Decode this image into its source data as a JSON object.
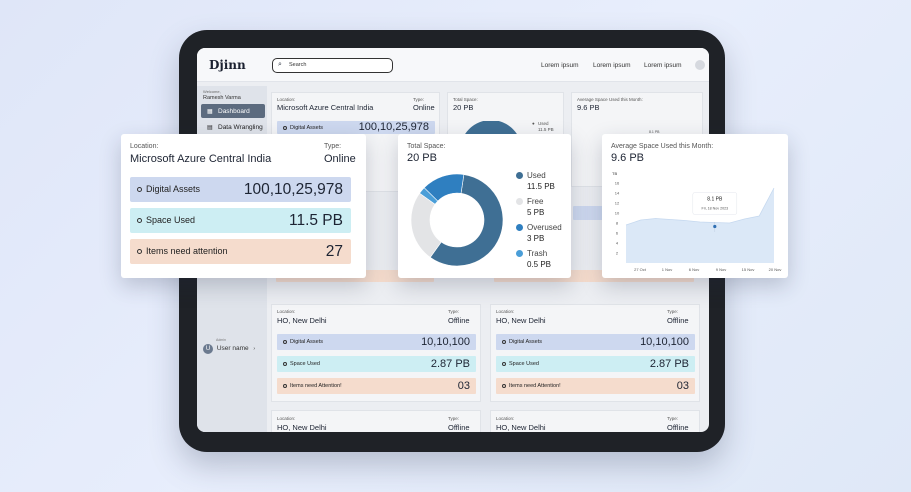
{
  "app": {
    "logo": "Djinn",
    "search_placeholder": "Search",
    "nav": [
      "Lorem ipsum",
      "Lorem ipsum",
      "Lorem ipsum"
    ]
  },
  "sidebar": {
    "welcome": "Welcome,",
    "user": "Ramesh Varma",
    "items": [
      {
        "label": "Dashboard",
        "icon": "grid-icon",
        "active": true
      },
      {
        "label": "Data Wrangling",
        "icon": "database-icon",
        "active": false
      }
    ],
    "footer_user": "User name",
    "footer_user_caption": "Admin"
  },
  "location_card_popup": {
    "location_label": "Location:",
    "location": "Microsoft Azure Central India",
    "type_label": "Type:",
    "type": "Online",
    "rows": [
      {
        "label": "Digital Assets",
        "value": "100,10,25,978"
      },
      {
        "label": "Space Used",
        "value": "11.5 PB"
      },
      {
        "label": "Items need attention",
        "value": "27"
      }
    ]
  },
  "bg_location_card": {
    "location_label": "Location:",
    "location": "Microsoft Azure Central India",
    "type_label": "Type:",
    "type": "Online",
    "row_label": "Digital Assets",
    "row_value": "100,10,25,978",
    "attention_label": "Items need Attention!",
    "attention_value": "03"
  },
  "bg_total_space": {
    "title": "Total Space:",
    "value": "20 PB",
    "used_label": "Used",
    "used_value": "11.5 PB"
  },
  "bg_avg_space": {
    "title": "Average Space Used this Month:",
    "value": "9.6 PB",
    "tooltip": "8.1 PB"
  },
  "total_space_popup": {
    "title": "Total Space:",
    "value": "20 PB",
    "legend": [
      {
        "label": "Used",
        "value": "11.5 PB",
        "color": "#3f6f94"
      },
      {
        "label": "Free",
        "value": "5 PB",
        "color": "#e3e4e6"
      },
      {
        "label": "Overused",
        "value": "3 PB",
        "color": "#2f7fc0"
      },
      {
        "label": "Trash",
        "value": "0.5 PB",
        "color": "#4a9ed8"
      }
    ]
  },
  "avg_space_popup": {
    "title": "Average Space Used this Month:",
    "value": "9.6 PB",
    "tooltip_value": "8.1 PB",
    "tooltip_date": "Fri, 18 Nov 2023"
  },
  "chart_data": {
    "type": "area",
    "title": "Average Space Used this Month:",
    "ylabel": "TB",
    "yticks": [
      "16",
      "14",
      "12",
      "10",
      "8",
      "6",
      "4",
      "2"
    ],
    "xticks": [
      "27 Oct",
      "1 Nov",
      "6 Nov",
      "9 Nov",
      "15 Nov",
      "20 Nov"
    ],
    "ylim": [
      0,
      16
    ],
    "x": [
      0,
      0.5,
      1,
      1.5,
      2,
      2.5,
      3,
      3.5,
      4,
      4.5,
      5
    ],
    "values": [
      7.6,
      8.6,
      8.9,
      8.7,
      8.5,
      8.2,
      8.1,
      8.0,
      8.8,
      9.4,
      15.0
    ],
    "highlight": {
      "x": 3,
      "y": 8.1,
      "label": "8.1 PB"
    }
  },
  "location_cards": [
    {
      "location_label": "Location:",
      "location": "HO, New Delhi",
      "type_label": "Type:",
      "type": "Offline",
      "rows": [
        {
          "label": "Digital Assets",
          "value": "10,10,100"
        },
        {
          "label": "Space Used",
          "value": "2.87 PB"
        },
        {
          "label": "Items need Attention!",
          "value": "03"
        }
      ]
    },
    {
      "location_label": "Location:",
      "location": "HO, New Delhi",
      "type_label": "Type:",
      "type": "Offline",
      "rows": [
        {
          "label": "Digital Assets",
          "value": "10,10,100"
        },
        {
          "label": "Space Used",
          "value": "2.87 PB"
        },
        {
          "label": "Items need Attention!",
          "value": "03"
        }
      ]
    },
    {
      "location_label": "Location:",
      "location": "HO, New Delhi",
      "type_label": "Type:",
      "type": "Offline"
    },
    {
      "location_label": "Location:",
      "location": "HO, New Delhi",
      "type_label": "Type:",
      "type": "Offline"
    }
  ],
  "partial_rows": {
    "attention_label": "Items need Attention!",
    "attention_value": "03"
  }
}
